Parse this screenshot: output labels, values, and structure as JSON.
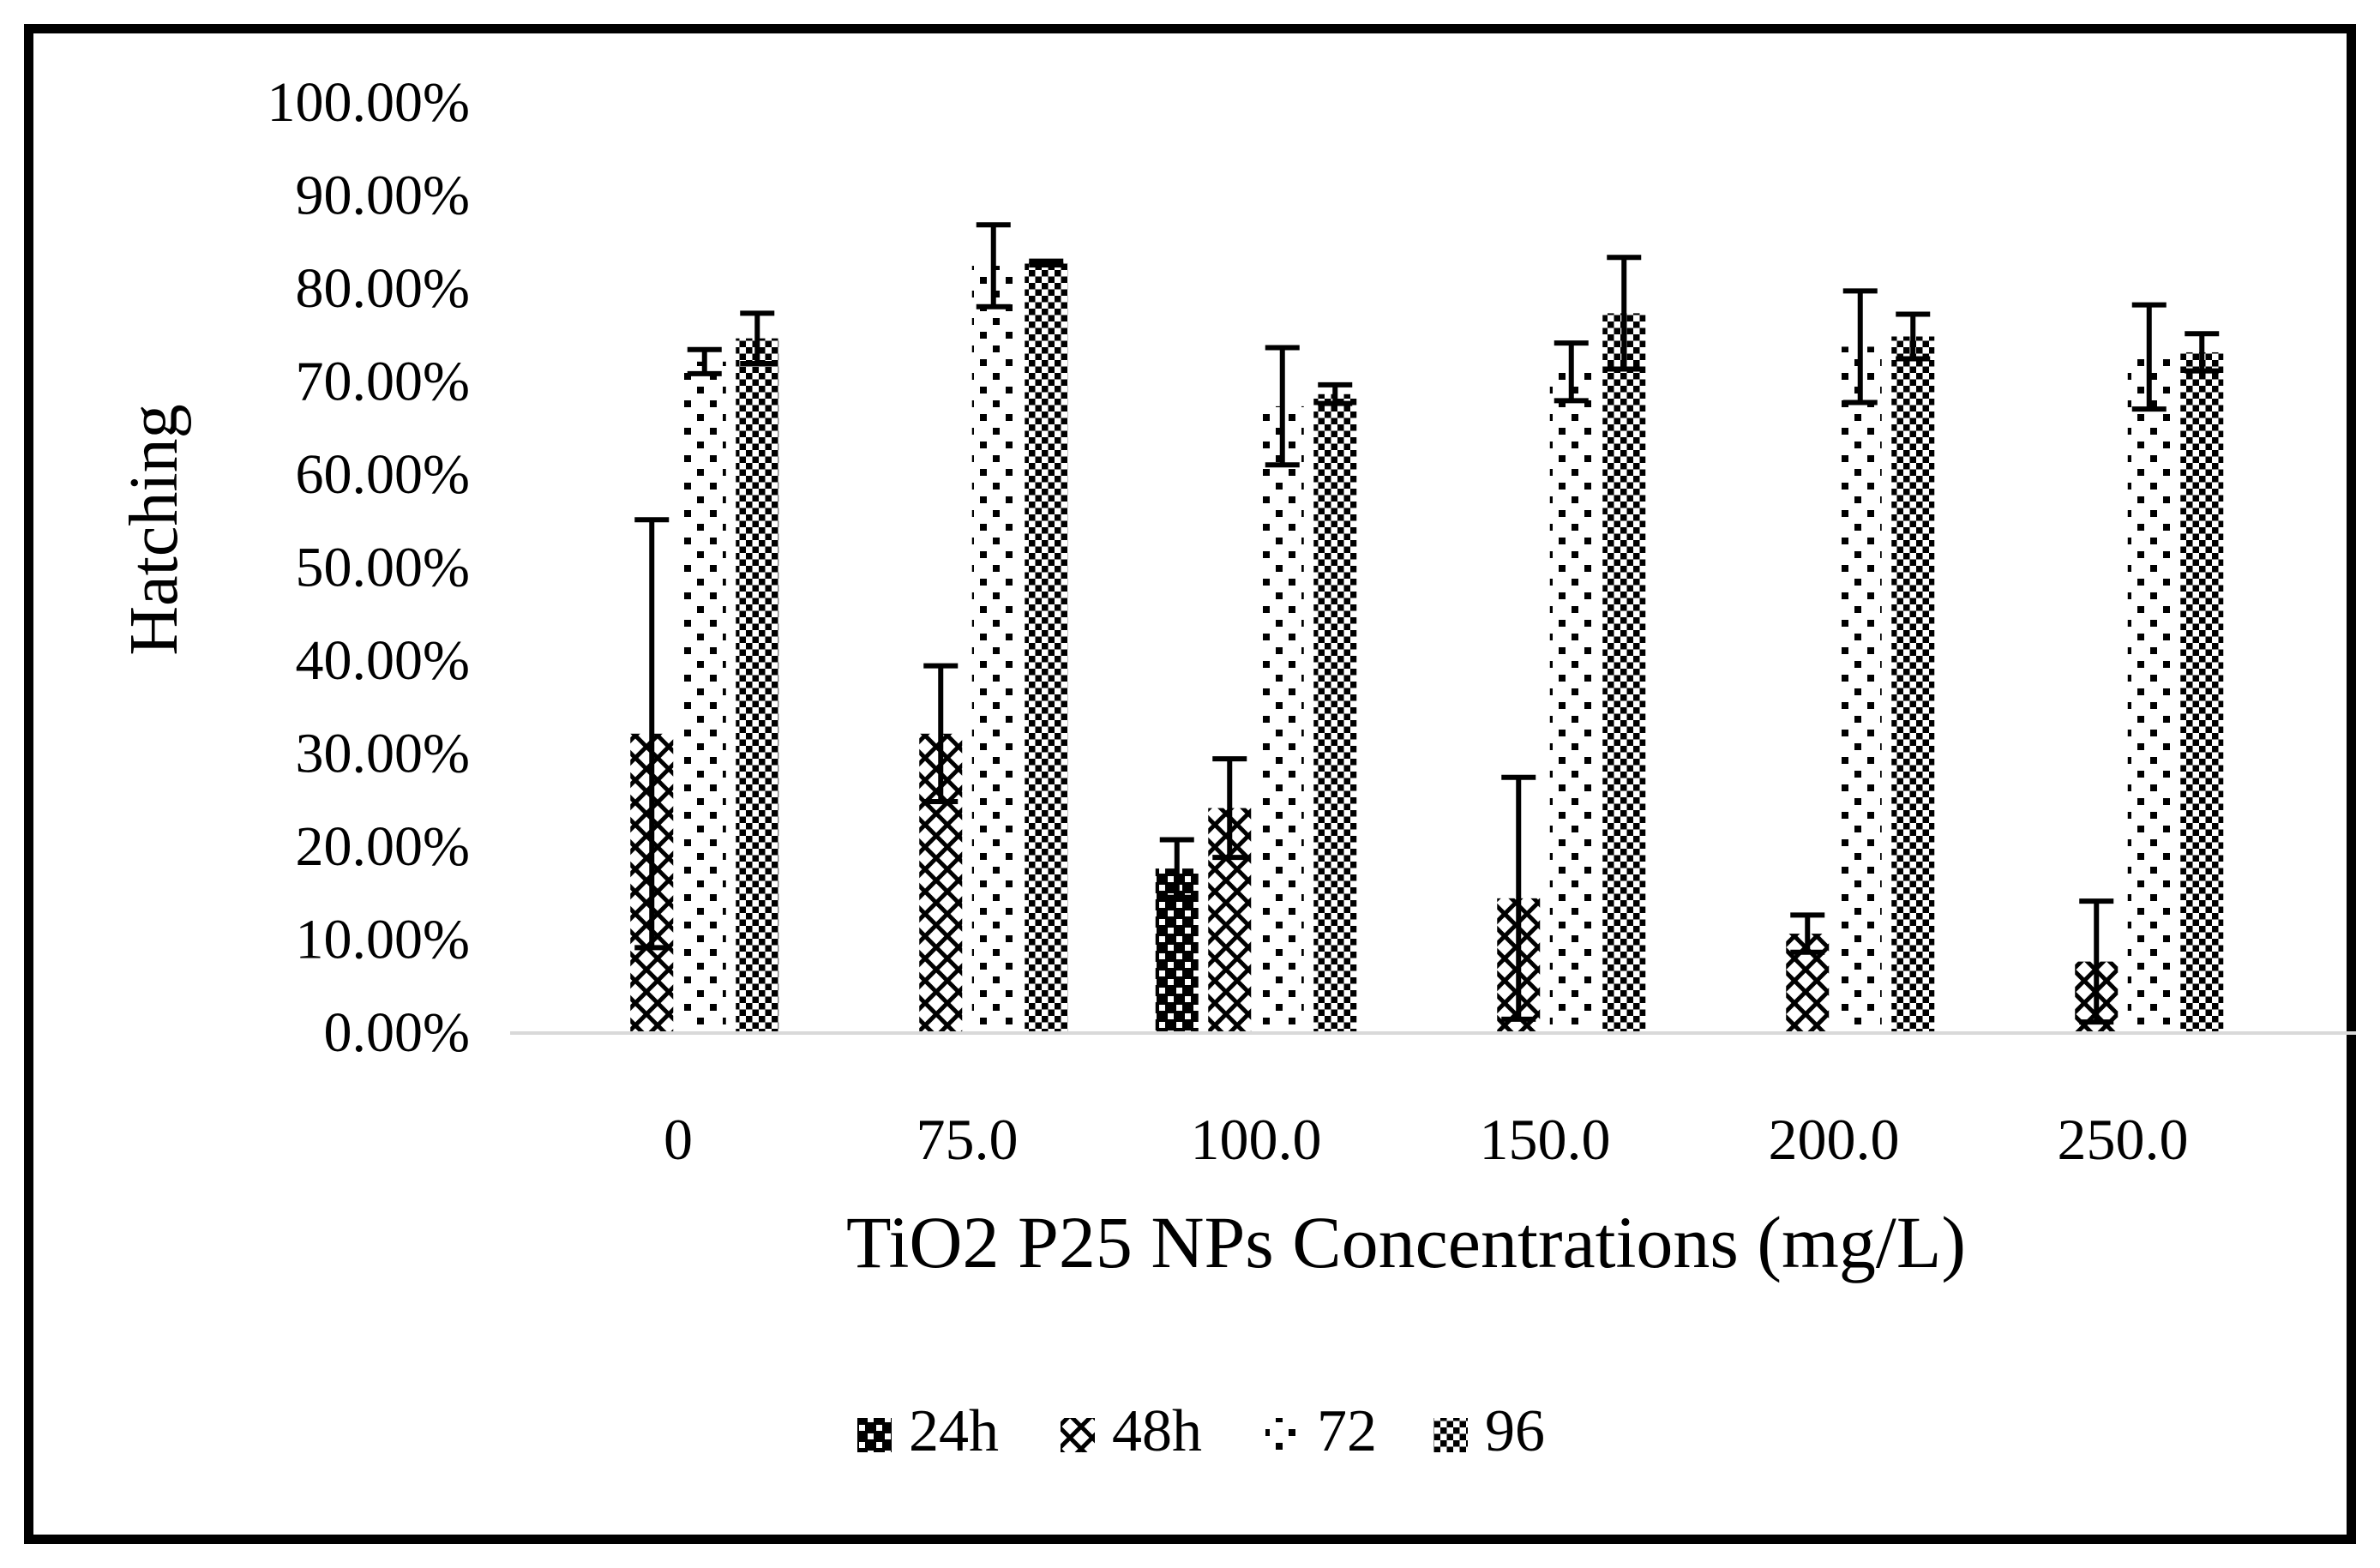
{
  "chart_data": {
    "type": "bar",
    "title": "",
    "ylabel": "Hatching",
    "xlabel": "TiO2 P25 NPs Concentrations (mg/L)",
    "categories": [
      "0",
      "75.0",
      "100.0",
      "150.0",
      "200.0",
      "250.0"
    ],
    "y_ticks": [
      "100.00%",
      "90.00%",
      "80.00%",
      "70.00%",
      "60.00%",
      "50.00%",
      "40.00%",
      "30.00%",
      "20.00%",
      "10.00%",
      "0.00%"
    ],
    "ylim": [
      0,
      100
    ],
    "y_unit": "%",
    "grid": false,
    "legend_position": "bottom",
    "legend": [
      "24h",
      "48h",
      "72",
      "96"
    ],
    "series": [
      {
        "name": "24h",
        "pattern": "black-with-white-dots",
        "values": [
          0,
          0,
          17.5,
          0,
          0,
          0
        ],
        "errors": [
          0,
          0,
          3.1,
          0,
          0,
          0
        ]
      },
      {
        "name": "48h",
        "pattern": "diamond-lattice",
        "values": [
          32,
          32,
          24,
          14.3,
          10.5,
          7.5
        ],
        "errors": [
          23,
          7.3,
          5.3,
          13,
          2,
          6.5
        ]
      },
      {
        "name": "72",
        "pattern": "sparse-dots",
        "values": [
          72,
          82.3,
          67.2,
          70.9,
          73.6,
          72.5
        ],
        "errors": [
          1.3,
          4.4,
          6.3,
          3.1,
          6,
          5.6
        ]
      },
      {
        "name": "96",
        "pattern": "checkerboard",
        "values": [
          74.5,
          82.6,
          68.5,
          77.2,
          74.7,
          73
        ],
        "errors": [
          2.7,
          0.2,
          1,
          6,
          2.4,
          2
        ]
      }
    ]
  },
  "colors": {
    "bars": "#000000",
    "error_bars": "#000000",
    "baseline": "#d9d9d9",
    "frame": "#000000",
    "background": "#ffffff",
    "text": "#000000"
  }
}
